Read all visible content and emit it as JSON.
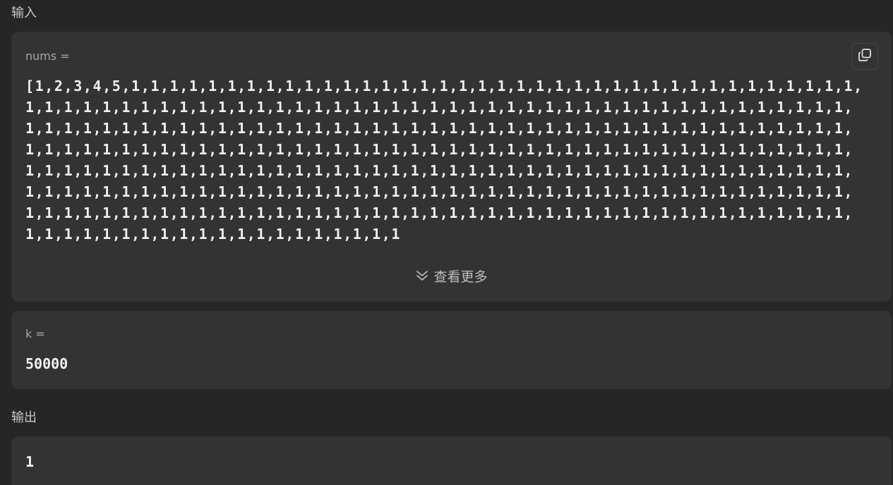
{
  "input_section": {
    "label": "输入"
  },
  "nums": {
    "label": "nums =",
    "value": "[1,2,3,4,5,1,1,1,1,1,1,1,1,1,1,1,1,1,1,1,1,1,1,1,1,1,1,1,1,1,1,1,1,1,1,1,1,1,1,1,1,1,1,1,1,1,1,1,1,1,1,1,1,1,1,1,1,1,1,1,1,1,1,1,1,1,1,1,1,1,1,1,1,1,1,1,1,1,1,1,1,1,1,1,1,1,1,1,1,1,1,1,1,1,1,1,1,1,1,1,1,1,1,1,1,1,1,1,1,1,1,1,1,1,1,1,1,1,1,1,1,1,1,1,1,1,1,1,1,1,1,1,1,1,1,1,1,1,1,1,1,1,1,1,1,1,1,1,1,1,1,1,1,1,1,1,1,1,1,1,1,1,1,1,1,1,1,1,1,1,1,1,1,1,1,1,1,1,1,1,1,1,1,1,1,1,1,1,1,1,1,1,1,1,1,1,1,1,1,1,1,1,1,1,1,1,1,1,1,1,1,1,1,1,1,1,1,1,1,1,1,1,1,1,1,1,1,1,1,1,1,1,1,1,1,1,1,1,1,1,1,1,1,1,1,1,1,1,1,1,1,1,1,1,1,1,1,1,1,1,1,1,1,1,1,1,1,1,1,1,1,1,1,1,1,1,1,1,1,1,1,1,1,1,1,1,1,1,1,1,1,1,1,1,1,1,1,1,1,1,1,1,1,1,1,1,1,1,1,1,1,1,1,1,1,1,1,1,1,1,1",
    "copy_icon": "copy-icon",
    "show_more_label": "查看更多",
    "show_more_icon": "double-chevron-down-icon"
  },
  "k": {
    "label": "k =",
    "value": "50000"
  },
  "output_section": {
    "label": "输出",
    "value": "1"
  },
  "colors": {
    "background": "#262626",
    "card": "#333333",
    "text": "#f2f2f2",
    "muted": "#a6a6a6"
  }
}
